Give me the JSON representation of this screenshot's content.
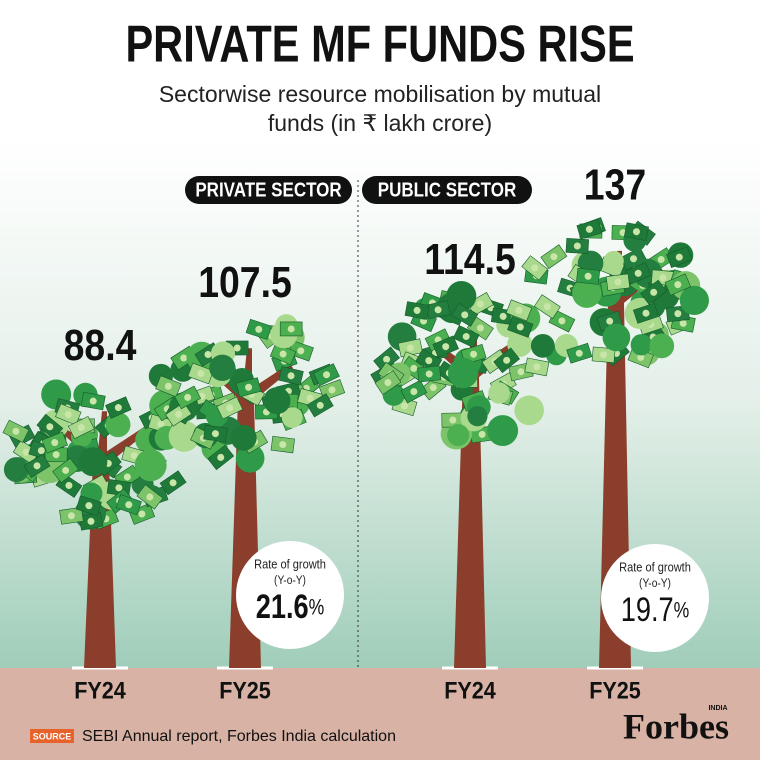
{
  "header": {
    "title": "PRIVATE MF FUNDS RISE",
    "subtitle": "Sectorwise resource mobilisation by mutual funds (in ₹ lakh crore)"
  },
  "chart_data": [
    {
      "type": "tree",
      "title": "PRIVATE SECTOR",
      "categories": [
        "FY24",
        "FY25"
      ],
      "values": [
        88.4,
        107.5
      ],
      "color": "#8a3e2b",
      "growth": {
        "label": "Rate of growth",
        "sublabel": "(Y-o-Y)",
        "value": 21.6,
        "unit": "%"
      }
    },
    {
      "type": "tree",
      "title": "PUBLIC SECTOR",
      "categories": [
        "FY24",
        "FY25"
      ],
      "values": [
        114.5,
        137
      ],
      "color": "#8a3e2b",
      "growth": {
        "label": "Rate of growth",
        "sublabel": "(Y-o-Y)",
        "value": 19.7,
        "unit": "%"
      }
    }
  ],
  "footer": {
    "source_tag": "SOURCE",
    "source": "SEBI Annual report, Forbes India calculation",
    "brand": "Forbes",
    "brand_sub": "INDIA"
  }
}
